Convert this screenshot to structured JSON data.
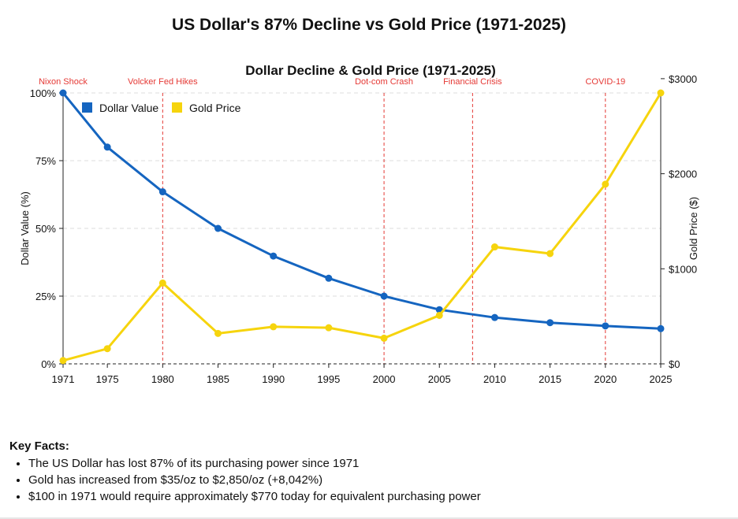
{
  "page_title": "US Dollar's 87% Decline vs Gold Price (1971-2025)",
  "chart_data": {
    "type": "line",
    "title": "Dollar Decline & Gold Price (1971-2025)",
    "x": [
      1971,
      1975,
      1980,
      1985,
      1990,
      1995,
      2000,
      2005,
      2010,
      2015,
      2020,
      2025
    ],
    "x_tick_labels": [
      "1971",
      "1975",
      "1980",
      "1985",
      "1990",
      "1995",
      "2000",
      "2005",
      "2010",
      "2015",
      "2020",
      "2025"
    ],
    "xlim": [
      1971,
      2025
    ],
    "series": [
      {
        "name": "Dollar Value",
        "axis": "left",
        "color": "#1565c0",
        "values": [
          100,
          80,
          63.5,
          50,
          39.8,
          31.6,
          25,
          20,
          17.1,
          15.2,
          14,
          13
        ]
      },
      {
        "name": "Gold Price",
        "axis": "right",
        "color": "#f6d40d",
        "values": [
          35,
          160,
          850,
          320,
          390,
          380,
          270,
          510,
          1230,
          1160,
          1890,
          2850
        ]
      }
    ],
    "y_left": {
      "label": "Dollar Value (%)",
      "range": [
        0,
        100
      ],
      "ticks": [
        0,
        25,
        50,
        75,
        100
      ],
      "tick_labels": [
        "0%",
        "25%",
        "50%",
        "75%",
        "100%"
      ]
    },
    "y_right": {
      "label": "Gold Price ($)",
      "range": [
        0,
        2850
      ],
      "ticks": [
        0,
        1000,
        2000,
        3000
      ],
      "tick_labels": [
        "$0",
        "$1000",
        "$2000",
        "$3000"
      ]
    },
    "annotations": [
      {
        "x": 1971,
        "label": "Nixon Shock"
      },
      {
        "x": 1980,
        "label": "Volcker Fed Hikes"
      },
      {
        "x": 2000,
        "label": "Dot-com Crash"
      },
      {
        "x": 2008,
        "label": "Financial Crisis"
      },
      {
        "x": 2020,
        "label": "COVID-19"
      }
    ],
    "legend_position": "top-left",
    "grid": "horizontal dashed"
  },
  "key_facts": {
    "heading": "Key Facts:",
    "items": [
      "The US Dollar has lost 87% of its purchasing power since 1971",
      "Gold has increased from $35/oz to $2,850/oz (+8,042%)",
      "$100 in 1971 would require approximately $770 today for equivalent purchasing power"
    ]
  }
}
